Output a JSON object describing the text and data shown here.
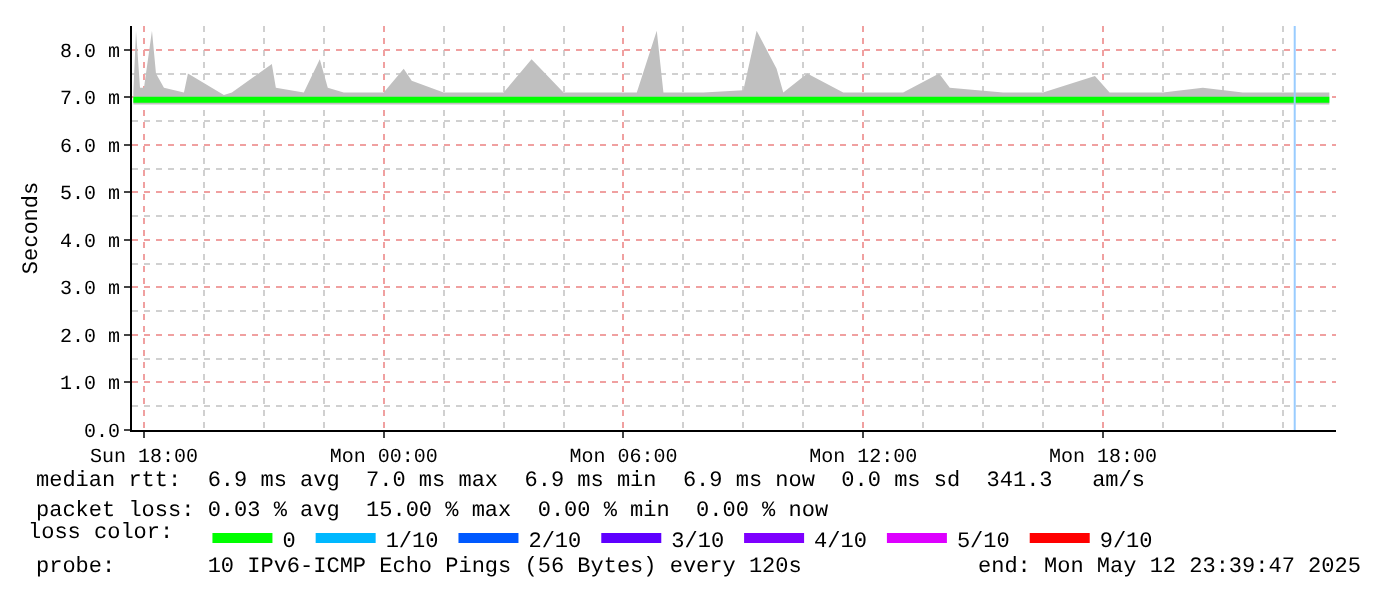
{
  "chart_data": {
    "type": "line",
    "ylabel": "Seconds",
    "legend_title": "loss color:",
    "x": [
      "2025-05-11T17:44",
      "2025-05-11T17:48",
      "2025-05-11T17:54",
      "2025-05-11T18:00",
      "2025-05-11T18:12",
      "2025-05-11T18:18",
      "2025-05-11T18:30",
      "2025-05-11T19:00",
      "2025-05-11T19:06",
      "2025-05-11T20:00",
      "2025-05-11T20:12",
      "2025-05-11T21:12",
      "2025-05-11T21:18",
      "2025-05-11T22:00",
      "2025-05-11T22:24",
      "2025-05-11T22:36",
      "2025-05-11T23:00",
      "2025-05-12T00:00",
      "2025-05-12T00:30",
      "2025-05-12T00:42",
      "2025-05-12T01:30",
      "2025-05-12T03:00",
      "2025-05-12T03:42",
      "2025-05-12T04:30",
      "2025-05-12T05:30",
      "2025-05-12T06:20",
      "2025-05-12T06:50",
      "2025-05-12T07:00",
      "2025-05-12T08:00",
      "2025-05-12T09:00",
      "2025-05-12T09:20",
      "2025-05-12T09:50",
      "2025-05-12T10:00",
      "2025-05-12T10:36",
      "2025-05-12T11:30",
      "2025-05-12T12:00",
      "2025-05-12T13:00",
      "2025-05-12T13:54",
      "2025-05-12T14:10",
      "2025-05-12T15:30",
      "2025-05-12T16:30",
      "2025-05-12T17:48",
      "2025-05-12T18:10",
      "2025-05-12T19:30",
      "2025-05-12T20:30",
      "2025-05-12T21:30",
      "2025-05-12T22:30",
      "2025-05-12T23:40"
    ],
    "series": [
      {
        "name": "0",
        "color": "#00ff00",
        "values": [
          6.95,
          6.95,
          6.95,
          6.95,
          6.95,
          6.95,
          6.95,
          6.95,
          6.95,
          6.95,
          6.95,
          6.95,
          6.95,
          6.95,
          6.95,
          6.95,
          6.95,
          6.95,
          6.95,
          6.95,
          6.95,
          6.95,
          6.95,
          6.95,
          6.95,
          6.95,
          6.95,
          6.95,
          6.95,
          6.95,
          6.95,
          6.95,
          6.95,
          6.95,
          6.95,
          6.95,
          6.95,
          6.95,
          6.95,
          6.95,
          6.95,
          6.95,
          6.95,
          6.95,
          6.95,
          6.95,
          6.95,
          6.95
        ],
        "lower": [
          6.85,
          6.85,
          6.85,
          6.85,
          6.85,
          6.85,
          6.85,
          6.85,
          6.85,
          6.85,
          6.85,
          6.85,
          6.85,
          6.85,
          6.85,
          6.85,
          6.85,
          6.85,
          6.85,
          6.85,
          6.85,
          6.85,
          6.85,
          6.85,
          6.85,
          6.85,
          6.85,
          6.85,
          6.85,
          6.85,
          6.85,
          6.85,
          6.85,
          6.85,
          6.85,
          6.85,
          6.85,
          6.85,
          6.85,
          6.85,
          6.85,
          6.85,
          6.85,
          6.85,
          6.85,
          6.85,
          6.85,
          6.85
        ],
        "upper": [
          7.1,
          8.4,
          7.2,
          7.2,
          8.4,
          7.5,
          7.2,
          7.1,
          7.5,
          7.05,
          7.1,
          7.7,
          7.2,
          7.1,
          7.8,
          7.2,
          7.1,
          7.1,
          7.6,
          7.35,
          7.1,
          7.1,
          7.8,
          7.1,
          7.1,
          7.1,
          8.4,
          7.1,
          7.1,
          7.15,
          8.4,
          7.6,
          7.1,
          7.5,
          7.1,
          7.1,
          7.1,
          7.5,
          7.2,
          7.1,
          7.1,
          7.45,
          7.1,
          7.1,
          7.2,
          7.1,
          7.1,
          7.1
        ]
      },
      {
        "name": "1/10",
        "color": "#00b8ff",
        "values": [
          null,
          null,
          null,
          null,
          null,
          null,
          null,
          null,
          null,
          null,
          null,
          null,
          null,
          null,
          null,
          null,
          null,
          null,
          null,
          null,
          null,
          null,
          null,
          null,
          null,
          null,
          null,
          null,
          null,
          null,
          null,
          null,
          null,
          null,
          null,
          null,
          null,
          null,
          null,
          null,
          null,
          null,
          null,
          null,
          null,
          null,
          null,
          null
        ]
      },
      {
        "name": "2/10",
        "color": "#0059ff",
        "values": [
          null,
          null,
          null,
          null,
          null,
          null,
          null,
          null,
          null,
          null,
          null,
          null,
          null,
          null,
          null,
          null,
          null,
          null,
          null,
          null,
          null,
          null,
          null,
          null,
          null,
          null,
          null,
          null,
          null,
          null,
          null,
          null,
          null,
          null,
          null,
          null,
          null,
          null,
          null,
          null,
          null,
          null,
          null,
          null,
          null,
          null,
          null,
          null
        ]
      },
      {
        "name": "3/10",
        "color": "#5e00ff",
        "values": [
          null,
          null,
          null,
          null,
          null,
          null,
          null,
          null,
          null,
          null,
          null,
          null,
          null,
          null,
          null,
          null,
          null,
          null,
          null,
          null,
          null,
          null,
          null,
          null,
          null,
          null,
          null,
          null,
          null,
          null,
          null,
          null,
          null,
          null,
          null,
          null,
          null,
          null,
          null,
          null,
          null,
          null,
          null,
          null,
          null,
          null,
          null,
          null
        ]
      },
      {
        "name": "4/10",
        "color": "#7e00ff",
        "values": [
          null,
          null,
          null,
          null,
          null,
          null,
          null,
          null,
          null,
          null,
          null,
          null,
          null,
          null,
          null,
          null,
          null,
          null,
          null,
          null,
          null,
          null,
          null,
          null,
          null,
          null,
          null,
          null,
          null,
          null,
          null,
          null,
          null,
          null,
          null,
          null,
          null,
          null,
          null,
          null,
          null,
          null,
          null,
          null,
          null,
          null,
          null,
          null
        ]
      },
      {
        "name": "5/10",
        "color": "#dd00ff",
        "values": [
          null,
          null,
          null,
          null,
          null,
          null,
          null,
          null,
          null,
          null,
          null,
          null,
          null,
          null,
          null,
          null,
          null,
          null,
          null,
          null,
          null,
          null,
          null,
          null,
          null,
          null,
          null,
          null,
          null,
          null,
          null,
          null,
          null,
          null,
          null,
          null,
          null,
          null,
          null,
          null,
          null,
          null,
          null,
          null,
          null,
          null,
          null,
          null
        ]
      },
      {
        "name": "9/10",
        "color": "#ff0000",
        "values": [
          null,
          null,
          null,
          null,
          null,
          null,
          null,
          null,
          null,
          null,
          null,
          null,
          null,
          null,
          null,
          null,
          null,
          null,
          null,
          null,
          null,
          null,
          null,
          null,
          null,
          null,
          null,
          null,
          null,
          null,
          null,
          null,
          null,
          null,
          null,
          null,
          null,
          null,
          null,
          null,
          null,
          null,
          null,
          null,
          null,
          null,
          null,
          null
        ]
      }
    ],
    "xlim": [
      "2025-05-11T17:42",
      "2025-05-12T23:50"
    ],
    "xticks": [
      {
        "value": "2025-05-11T18:00",
        "label": "Sun 18:00"
      },
      {
        "value": "2025-05-12T00:00",
        "label": "Mon 00:00"
      },
      {
        "value": "2025-05-12T06:00",
        "label": "Mon 06:00"
      },
      {
        "value": "2025-05-12T12:00",
        "label": "Mon 12:00"
      },
      {
        "value": "2025-05-12T18:00",
        "label": "Mon 18:00"
      }
    ],
    "ylim": [
      0,
      8.5
    ],
    "yticks": [
      {
        "value": 0,
        "label": "0.0"
      },
      {
        "value": 1,
        "label": "1.0 m"
      },
      {
        "value": 2,
        "label": "2.0 m"
      },
      {
        "value": 3,
        "label": "3.0 m"
      },
      {
        "value": 4,
        "label": "4.0 m"
      },
      {
        "value": 5,
        "label": "5.0 m"
      },
      {
        "value": 6,
        "label": "6.0 m"
      },
      {
        "value": 7,
        "label": "7.0 m"
      },
      {
        "value": 8,
        "label": "8.0 m"
      }
    ],
    "ref_lines": [
      {
        "axis": "x",
        "value": "2025-05-12T22:48",
        "color": "#99ccff",
        "line_style": "solid"
      }
    ],
    "grid": true,
    "legend": "bottom",
    "marker": "none",
    "line_style": "solid",
    "annotations": [
      "median rtt:  6.9 ms avg  7.0 ms max  6.9 ms min  6.9 ms now  0.0 ms sd  341.3   am/s",
      "packet loss: 0.03 % avg  15.00 % max  0.00 % min  0.00 % now",
      "probe:       10 IPv6-ICMP Echo Pings (56 Bytes) every 120s",
      "end: Mon May 12 23:39:47 2025"
    ]
  }
}
